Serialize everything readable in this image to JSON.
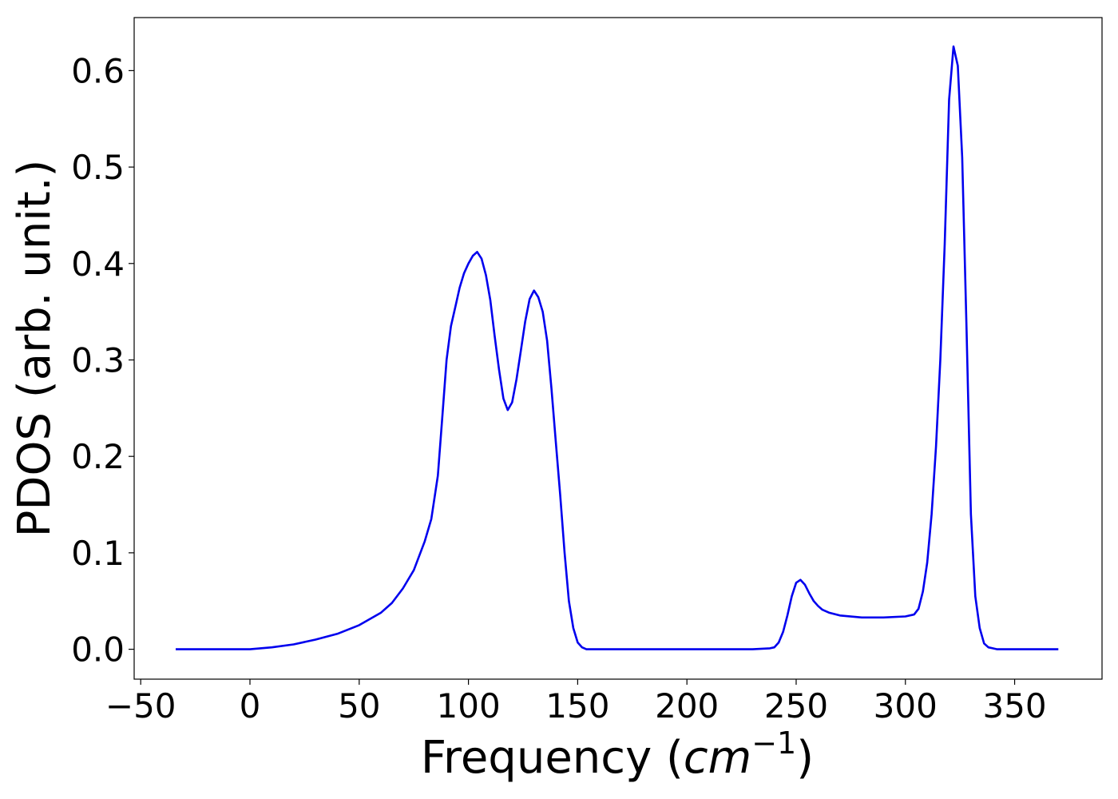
{
  "chart_data": {
    "type": "line",
    "xlabel": {
      "prefix": "Frequency (",
      "italic": "cm",
      "superscript": "−1",
      "suffix": ")"
    },
    "ylabel": "PDOS (arb. unit.)",
    "xlim": [
      -53,
      390
    ],
    "ylim": [
      -0.031,
      0.655
    ],
    "xticks": [
      -50,
      0,
      50,
      100,
      150,
      200,
      250,
      300,
      350
    ],
    "xtick_labels": [
      "−50",
      "0",
      "50",
      "100",
      "150",
      "200",
      "250",
      "300",
      "350"
    ],
    "yticks": [
      0.0,
      0.1,
      0.2,
      0.3,
      0.4,
      0.5,
      0.6
    ],
    "ytick_labels": [
      "0.0",
      "0.1",
      "0.2",
      "0.3",
      "0.4",
      "0.5",
      "0.6"
    ],
    "grid": false,
    "series": [
      {
        "color": "#0000ee",
        "x": [
          -34,
          -20,
          0,
          10,
          20,
          30,
          40,
          50,
          60,
          65,
          70,
          75,
          80,
          83,
          86,
          88,
          90,
          92,
          94,
          96,
          98,
          100,
          102,
          104,
          106,
          108,
          110,
          112,
          114,
          116,
          118,
          120,
          122,
          124,
          126,
          128,
          130,
          132,
          134,
          136,
          138,
          140,
          142,
          144,
          146,
          148,
          150,
          152,
          154,
          156,
          158,
          160,
          162,
          170,
          200,
          230,
          238,
          240,
          242,
          244,
          246,
          248,
          250,
          252,
          254,
          256,
          258,
          260,
          262,
          265,
          270,
          280,
          290,
          300,
          304,
          306,
          308,
          310,
          312,
          314,
          316,
          318,
          320,
          322,
          324,
          326,
          328,
          330,
          332,
          334,
          336,
          338,
          340,
          342,
          344,
          350,
          370
        ],
        "y": [
          0.0,
          0.0,
          0.0,
          0.002,
          0.005,
          0.01,
          0.016,
          0.025,
          0.038,
          0.048,
          0.063,
          0.082,
          0.112,
          0.135,
          0.18,
          0.24,
          0.3,
          0.335,
          0.355,
          0.375,
          0.39,
          0.4,
          0.408,
          0.412,
          0.405,
          0.388,
          0.362,
          0.325,
          0.29,
          0.26,
          0.248,
          0.256,
          0.28,
          0.31,
          0.34,
          0.363,
          0.372,
          0.365,
          0.35,
          0.32,
          0.27,
          0.215,
          0.16,
          0.1,
          0.05,
          0.022,
          0.007,
          0.002,
          0.0,
          0.0,
          0.0,
          0.0,
          0.0,
          0.0,
          0.0,
          0.0,
          0.001,
          0.002,
          0.007,
          0.018,
          0.035,
          0.055,
          0.069,
          0.072,
          0.067,
          0.058,
          0.05,
          0.045,
          0.041,
          0.038,
          0.035,
          0.033,
          0.033,
          0.034,
          0.036,
          0.042,
          0.06,
          0.09,
          0.14,
          0.21,
          0.3,
          0.42,
          0.57,
          0.625,
          0.605,
          0.51,
          0.33,
          0.14,
          0.055,
          0.022,
          0.006,
          0.002,
          0.001,
          0.0,
          0.0,
          0.0,
          0.0
        ]
      }
    ]
  }
}
